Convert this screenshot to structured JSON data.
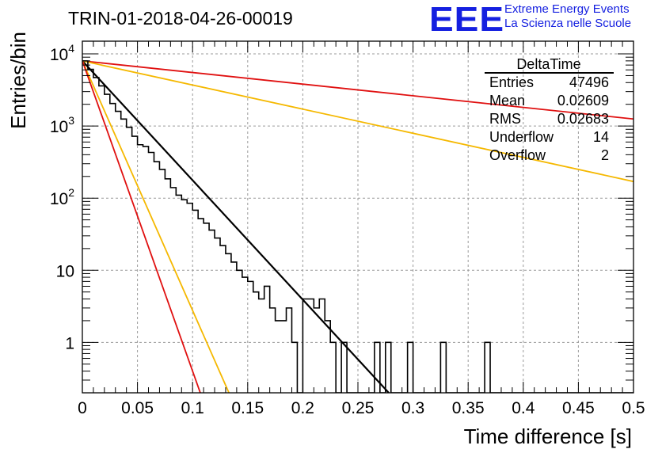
{
  "header": {
    "title": "TRIN-01-2018-04-26-00019",
    "logo_text": "EEE",
    "brand_line1": "Extreme Energy Events",
    "brand_line2": "La Scienza nelle Scuole",
    "brand_color": "#1520e0"
  },
  "chart_data": {
    "type": "histogram",
    "xlabel": "Time difference [s]",
    "ylabel": "Entries/bin",
    "xlim": [
      0,
      0.5
    ],
    "ylim": [
      0.2,
      15000
    ],
    "yscale": "log",
    "grid": true,
    "x_ticks": [
      "0",
      "0.05",
      "0.1",
      "0.15",
      "0.2",
      "0.25",
      "0.3",
      "0.35",
      "0.4",
      "0.45",
      "0.5"
    ],
    "y_ticks": [
      {
        "value": 1,
        "label": "1",
        "sup": ""
      },
      {
        "value": 10,
        "label": "10",
        "sup": ""
      },
      {
        "value": 100,
        "label": "10",
        "sup": "2"
      },
      {
        "value": 1000,
        "label": "10",
        "sup": "3"
      },
      {
        "value": 10000,
        "label": "10",
        "sup": "4"
      }
    ],
    "bin_width": 0.005,
    "histogram": {
      "name": "DeltaTime",
      "color": "#000000",
      "counts": [
        8000,
        6100,
        4700,
        3600,
        2750,
        2050,
        1600,
        1250,
        960,
        720,
        550,
        520,
        430,
        320,
        250,
        185,
        140,
        110,
        95,
        85,
        68,
        52,
        45,
        36,
        28,
        22,
        17,
        13,
        10,
        8,
        7,
        5,
        4,
        6,
        3,
        2,
        2,
        3,
        1,
        0,
        4,
        4,
        3,
        4,
        2,
        1,
        0,
        1,
        0,
        0,
        0,
        0,
        0,
        1,
        0,
        1,
        0,
        0,
        0,
        1,
        0,
        0,
        0,
        0,
        0,
        1,
        0,
        0,
        0,
        0,
        0,
        0,
        0,
        1,
        0,
        0,
        0,
        0,
        0,
        0,
        0,
        0,
        0,
        0,
        0,
        0,
        0,
        0,
        0,
        0,
        0,
        0,
        0,
        0,
        0,
        0,
        0,
        0,
        0,
        0
      ]
    },
    "fit_curves": [
      {
        "color": "#000000",
        "x0": 0,
        "y0": 8000,
        "x1": 0.278,
        "y1": 0.2
      },
      {
        "color": "#e01010",
        "x0": 0,
        "y0": 8000,
        "x1": 0.5,
        "y1": 1250
      },
      {
        "color": "#f5b800",
        "x0": 0,
        "y0": 8000,
        "x1": 0.5,
        "y1": 170
      },
      {
        "color": "#f5b800",
        "x0": 0,
        "y0": 8000,
        "x1": 0.133,
        "y1": 0.2
      },
      {
        "color": "#e01010",
        "x0": 0,
        "y0": 8000,
        "x1": 0.107,
        "y1": 0.2
      }
    ],
    "stats_box": {
      "title": "DeltaTime",
      "rows": [
        {
          "label": "Entries",
          "value": "47496"
        },
        {
          "label": "Mean",
          "value": "0.02609"
        },
        {
          "label": "RMS",
          "value": "0.02683"
        },
        {
          "label": "Underflow",
          "value": "14"
        },
        {
          "label": "Overflow",
          "value": "2"
        }
      ]
    }
  }
}
